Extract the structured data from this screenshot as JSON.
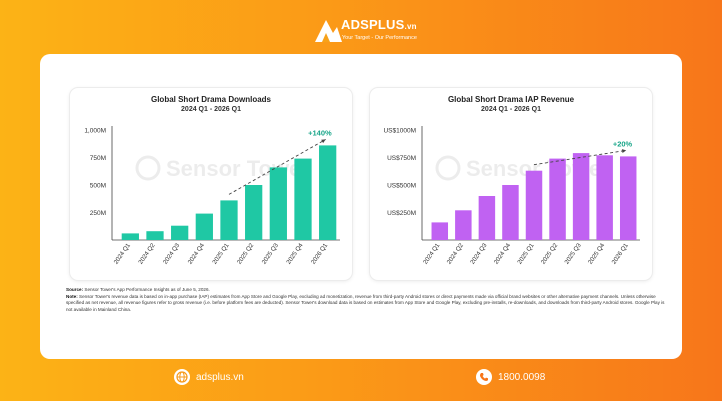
{
  "brand": {
    "name": "ADSPLUS",
    "name_suffix": ".vn",
    "tagline": "Your Target - Our Performance"
  },
  "footer": {
    "website": "adsplus.vn",
    "phone": "1800.0098"
  },
  "watermark": "Sensor Tower",
  "notes": {
    "source_label": "Source:",
    "source_text": " Sensor Tower's App Performance Insights as of June 5, 2026.",
    "note_label": "Note:",
    "note_text": " Sensor Tower's revenue data is based on in-app purchase (IAP) estimates from App Store and Google Play, excluding ad monetization, revenue from third-party Android stores or direct payments made via official brand websites or other alternative payment channels. Unless otherwise specified as net revenue, all revenue figures refer to gross revenue (i.e. before platform fees are deducted). Sensor Tower's download data is based on estimates from App Store and Google Play, excluding pre-installs, re-downloads, and downloads from third-party Android stores. Google Play is not available in Mainland China."
  },
  "colors": {
    "downloads_bar": "#1fc8a4",
    "revenue_bar": "#c062f2",
    "growth_label": "#17a589"
  },
  "chart_data": [
    {
      "type": "bar",
      "title": "Global Short Drama Downloads",
      "subtitle": "2024 Q1 - 2026 Q1",
      "categories": [
        "2024 Q1",
        "2024 Q2",
        "2024 Q3",
        "2024 Q4",
        "2025 Q1",
        "2025 Q2",
        "2025 Q3",
        "2025 Q4",
        "2026 Q1"
      ],
      "values": [
        60,
        80,
        130,
        240,
        360,
        500,
        660,
        740,
        860
      ],
      "ylim": [
        0,
        1000
      ],
      "yticks": [
        250,
        500,
        750,
        1000
      ],
      "ytick_labels": [
        "250M",
        "500M",
        "750M",
        "1,000M"
      ],
      "annotation": "+140%",
      "grid": false
    },
    {
      "type": "bar",
      "title": "Global Short Drama IAP Revenue",
      "subtitle": "2024 Q1 - 2026 Q1",
      "categories": [
        "2024 Q1",
        "2024 Q2",
        "2024 Q3",
        "2024 Q4",
        "2025 Q1",
        "2025 Q2",
        "2025 Q3",
        "2025 Q4",
        "2026 Q1"
      ],
      "values": [
        160,
        270,
        400,
        500,
        630,
        740,
        790,
        770,
        760
      ],
      "ylim": [
        0,
        1000
      ],
      "yticks": [
        250,
        500,
        750,
        1000
      ],
      "ytick_labels": [
        "US$250M",
        "US$500M",
        "US$750M",
        "US$1000M"
      ],
      "annotation": "+20%",
      "grid": false
    }
  ]
}
